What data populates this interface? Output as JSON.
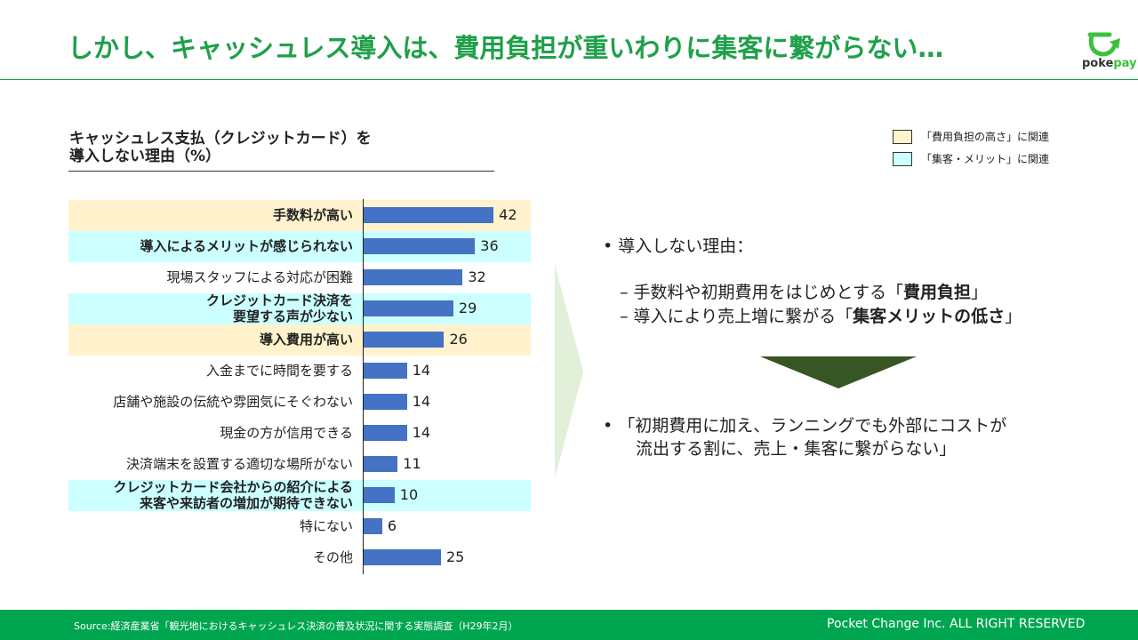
{
  "header": {
    "title": "しかし、キャッシュレス導入は、費用負担が重いわりに集客に繋がらない…",
    "logo": "pokepay"
  },
  "legend": [
    {
      "label": "「費用負担の高さ」に関連",
      "color": "#fff2cc"
    },
    {
      "label": "「集客・メリット」に関連",
      "color": "#ccffff"
    }
  ],
  "chart_data": {
    "type": "bar",
    "orientation": "horizontal",
    "title": "キャッシュレス支払（クレジットカード）を 導入しない理由（%）",
    "title_lines": [
      "キャッシュレス支払（クレジットカード）を",
      "導入しない理由（%）"
    ],
    "categories": [
      "手数料が高い",
      "導入によるメリットが感じられない",
      "現場スタッフによる対応が困難",
      "クレジットカード決済を 要望する声が少ない",
      "導入費用が高い",
      "入金までに時間を要する",
      "店舗や施設の伝統や雰囲気にそぐわない",
      "現金の方が信用できる",
      "決済端末を設置する適切な場所がない",
      "クレジットカード会社からの紹介による 来客や来訪者の増加が期待できない",
      "特にない",
      "その他"
    ],
    "values": [
      42,
      36,
      32,
      29,
      26,
      14,
      14,
      14,
      11,
      10,
      6,
      25
    ],
    "highlight": [
      "cost",
      "merit",
      "",
      "merit",
      "cost",
      "",
      "",
      "",
      "",
      "merit",
      "",
      ""
    ],
    "bar_color": "#4472c4",
    "xlim": [
      0,
      100
    ]
  },
  "right": {
    "reason_title": "導入しない理由：",
    "sub1_pre": "手数料や初期費用をはじめとする「",
    "sub1_bold": "費用負担",
    "sub1_post": "」",
    "sub2_pre": "導入により売上増に繋がる「",
    "sub2_bold": "集客メリットの低さ",
    "sub2_post": "」",
    "conclusion_1": "「初期費用に加え、ランニングでも外部にコストが",
    "conclusion_2": "流出する割に、売上・集客に繋がらない」"
  },
  "footer": {
    "source": "Source:経済産業省「観光地におけるキャッシュレス決済の普及状況に関する実態調査（H29年2月）",
    "copyright": "Pocket Change Inc. ALL RIGHT RESERVED"
  }
}
